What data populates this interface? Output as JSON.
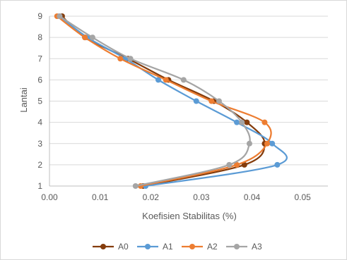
{
  "chart_data": {
    "type": "line",
    "xlabel": "Koefisien Stabilitas (%)",
    "ylabel": "Lantai",
    "xlim": [
      0,
      0.055
    ],
    "ylim": [
      1,
      9
    ],
    "x_ticks": [
      "0.00",
      "0.01",
      "0.02",
      "0.03",
      "0.04",
      "0.05"
    ],
    "y_ticks": [
      "1",
      "2",
      "3",
      "4",
      "5",
      "6",
      "7",
      "8",
      "9"
    ],
    "grid": "horizontal",
    "legend_position": "bottom",
    "smooth": true,
    "series": [
      {
        "name": "A0",
        "color": "#843c0c",
        "points": [
          [
            0.0185,
            1
          ],
          [
            0.0385,
            2
          ],
          [
            0.0425,
            3
          ],
          [
            0.039,
            4
          ],
          [
            0.0325,
            5
          ],
          [
            0.0235,
            6
          ],
          [
            0.0155,
            7
          ],
          [
            0.007,
            8
          ],
          [
            0.0025,
            9
          ]
        ]
      },
      {
        "name": "A1",
        "color": "#5b9bd5",
        "points": [
          [
            0.019,
            1
          ],
          [
            0.045,
            2
          ],
          [
            0.044,
            3
          ],
          [
            0.037,
            4
          ],
          [
            0.029,
            5
          ],
          [
            0.0215,
            6
          ],
          [
            0.015,
            7
          ],
          [
            0.0075,
            8
          ],
          [
            0.002,
            9
          ]
        ]
      },
      {
        "name": "A2",
        "color": "#ed7d31",
        "points": [
          [
            0.018,
            1
          ],
          [
            0.037,
            2
          ],
          [
            0.043,
            3
          ],
          [
            0.0425,
            4
          ],
          [
            0.032,
            5
          ],
          [
            0.023,
            6
          ],
          [
            0.014,
            7
          ],
          [
            0.007,
            8
          ],
          [
            0.0015,
            9
          ]
        ]
      },
      {
        "name": "A3",
        "color": "#a5a5a5",
        "points": [
          [
            0.017,
            1
          ],
          [
            0.0355,
            2
          ],
          [
            0.0395,
            3
          ],
          [
            0.038,
            4
          ],
          [
            0.0335,
            5
          ],
          [
            0.0265,
            6
          ],
          [
            0.016,
            7
          ],
          [
            0.0085,
            8
          ],
          [
            0.002,
            9
          ]
        ]
      }
    ]
  }
}
